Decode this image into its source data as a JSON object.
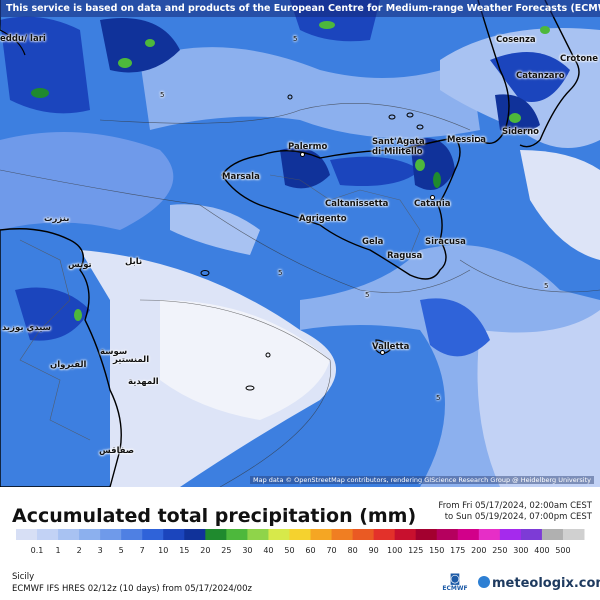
{
  "banner": "This service is based on data and products of the European Centre for Medium-range Weather Forecasts (ECMWF)",
  "credit": "Map data © OpenStreetMap contributors, rendering GIScience Research Group @ Heidelberg University",
  "cities": {
    "cagliari": "eddu/ lari",
    "cosenza": "Cosenza",
    "crotone": "Crotone",
    "catanzaro": "Catanzaro",
    "siderno": "Siderno",
    "palermo": "Palermo",
    "santagata": "Sant'Agata di Militello",
    "messina": "Messina",
    "marsala": "Marsala",
    "caltanissetta": "Caltanissetta",
    "agrigento": "Agrigento",
    "catania": "Catania",
    "gela": "Gela",
    "siracusa": "Siracusa",
    "ragusa": "Ragusa",
    "valletta": "Valletta",
    "bizerte": "بنزرت",
    "tunis": "تونس",
    "nabeul": "نابل",
    "sousse": "سوسة",
    "monastir": "المنستير",
    "mahdia": "المهدية",
    "kairouan": "القيروان",
    "sidibouzid": "سيدي بوزيد",
    "sfax": "صفاقس"
  },
  "contour_labels": {
    "c1": "5",
    "c2": "5",
    "c3": "5",
    "c4": "5",
    "c5": "5",
    "c6": "5"
  },
  "footer": {
    "title": "Accumulated total precipitation (mm)",
    "from_text": "From Fri 05/17/2024, 02:00am CEST",
    "to_text": "to Sun 05/19/2024, 07:00pm CEST",
    "region": "Sicily",
    "model": "ECMWF IFS HRES 02/12z (10 days) from 05/17/2024/00z",
    "ecmwf_label": "ECMWF",
    "brand": "meteologix.com"
  },
  "legend": {
    "unit": "mm",
    "ticks": [
      "0.1",
      "1",
      "2",
      "3",
      "5",
      "7",
      "10",
      "15",
      "20",
      "25",
      "30",
      "40",
      "50",
      "60",
      "70",
      "80",
      "90",
      "100",
      "125",
      "150",
      "175",
      "200",
      "250",
      "300",
      "400",
      "500"
    ],
    "colors": [
      "#d7dff5",
      "#c2d2f5",
      "#a8c2f2",
      "#8cb0ee",
      "#6f9aea",
      "#4f80e3",
      "#2f63d9",
      "#1b45bd",
      "#10329a",
      "#1f8a2e",
      "#4db83c",
      "#8fd44a",
      "#d7e94a",
      "#f5d22e",
      "#f5a623",
      "#f07e22",
      "#ea5a23",
      "#e3312a",
      "#c8102e",
      "#a3002f",
      "#b5005e",
      "#d2008a",
      "#e62ec7",
      "#a52aed",
      "#7d3bd6",
      "#b0b0b0",
      "#d0d0d0"
    ]
  }
}
